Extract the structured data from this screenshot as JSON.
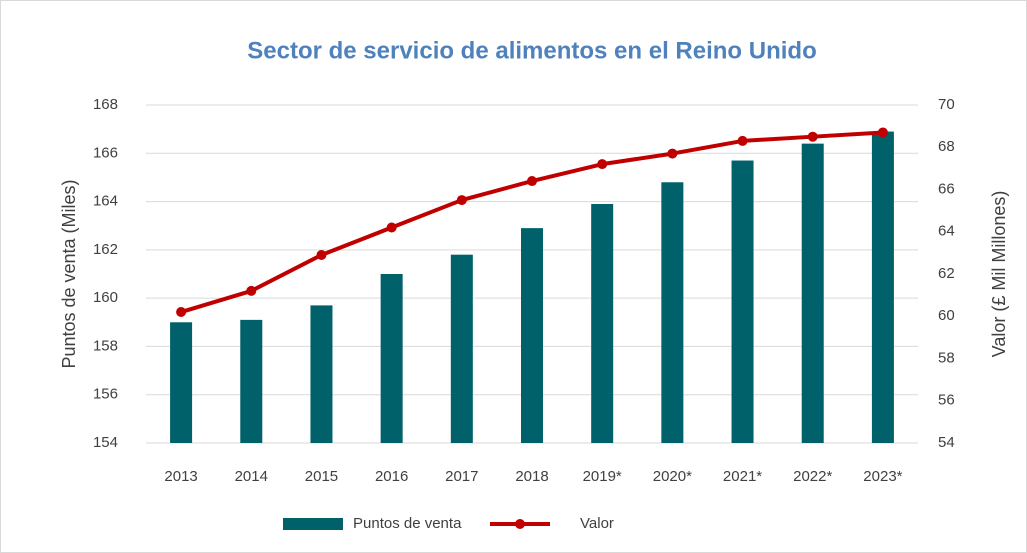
{
  "chart_data": {
    "type": "bar-line",
    "title": "Sector de servicio de alimentos en el Reino Unido",
    "y_label": "Puntos de venta (Miles)",
    "y2_label": "Valor (£ Mil Millones)",
    "categories": [
      "2013",
      "2014",
      "2015",
      "2016",
      "2017",
      "2018",
      "2019*",
      "2020*",
      "2021*",
      "2022*",
      "2023*"
    ],
    "series": [
      {
        "name": "Puntos de venta",
        "type": "bar",
        "color": "#00616b",
        "values": [
          159.0,
          159.1,
          159.7,
          161.0,
          161.8,
          162.9,
          163.9,
          164.8,
          165.7,
          166.4,
          166.9
        ]
      },
      {
        "name": "Valor",
        "type": "line",
        "axis": "y2",
        "color": "#c00000",
        "values": [
          60.2,
          61.2,
          62.9,
          64.2,
          65.5,
          66.4,
          67.2,
          67.7,
          68.3,
          68.5,
          68.7
        ]
      }
    ],
    "ylim": [
      154,
      168
    ],
    "yticks": [
      154,
      156,
      158,
      160,
      162,
      164,
      166,
      168
    ],
    "y2lim": [
      54,
      70
    ],
    "y2ticks": [
      54,
      56,
      58,
      60,
      62,
      64,
      66,
      68,
      70
    ],
    "grid": true,
    "legend": "bottom"
  }
}
